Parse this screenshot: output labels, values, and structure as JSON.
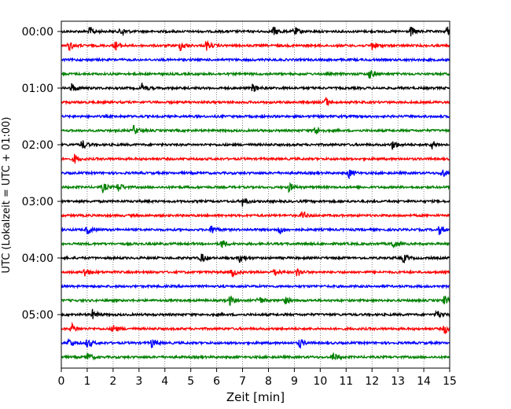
{
  "chart_data": {
    "type": "line",
    "chart_kind": "seismic helicorder (drum plot)",
    "xlabel": "Zeit  [min]",
    "ylabel": "UTC (Lokalzeit = UTC + 01:00)",
    "xlim": [
      0,
      15
    ],
    "x_ticks": [
      "0",
      "1",
      "2",
      "3",
      "4",
      "5",
      "6",
      "7",
      "8",
      "9",
      "10",
      "11",
      "12",
      "13",
      "14",
      "15"
    ],
    "y_ticks": [
      "00:00",
      "01:00",
      "02:00",
      "03:00",
      "04:00",
      "05:00"
    ],
    "grid": "vertical dotted gridlines at each minute",
    "colors_cycle": [
      "#000000",
      "#ff0000",
      "#0000ff",
      "#008000"
    ],
    "line_interval_minutes": 15,
    "traces": [
      {
        "start": "00:00",
        "color": "#000000",
        "events_min": [
          1.1,
          2.3,
          8.2,
          9.0,
          13.5,
          14.9
        ]
      },
      {
        "start": "00:15",
        "color": "#ff0000",
        "events_min": [
          0.3,
          2.1,
          4.6,
          5.6,
          12.0
        ]
      },
      {
        "start": "00:30",
        "color": "#0000ff",
        "events_min": []
      },
      {
        "start": "00:45",
        "color": "#008000",
        "events_min": [
          11.9
        ]
      },
      {
        "start": "01:00",
        "color": "#000000",
        "events_min": [
          0.4,
          3.1,
          7.4
        ]
      },
      {
        "start": "01:15",
        "color": "#ff0000",
        "events_min": [
          10.2
        ]
      },
      {
        "start": "01:30",
        "color": "#0000ff",
        "events_min": []
      },
      {
        "start": "01:45",
        "color": "#008000",
        "events_min": [
          2.8,
          9.8
        ]
      },
      {
        "start": "02:00",
        "color": "#000000",
        "events_min": [
          0.8,
          12.8,
          14.3
        ]
      },
      {
        "start": "02:15",
        "color": "#ff0000",
        "events_min": [
          0.5
        ]
      },
      {
        "start": "02:30",
        "color": "#0000ff",
        "events_min": [
          11.1,
          14.7
        ]
      },
      {
        "start": "02:45",
        "color": "#008000",
        "events_min": [
          1.6,
          2.2,
          8.8
        ]
      },
      {
        "start": "03:00",
        "color": "#000000",
        "events_min": [
          7.0
        ]
      },
      {
        "start": "03:15",
        "color": "#ff0000",
        "events_min": [
          9.3
        ]
      },
      {
        "start": "03:30",
        "color": "#0000ff",
        "events_min": [
          1.0,
          5.8,
          8.4,
          14.6
        ]
      },
      {
        "start": "03:45",
        "color": "#008000",
        "events_min": [
          6.2,
          12.8
        ]
      },
      {
        "start": "04:00",
        "color": "#000000",
        "events_min": [
          5.4,
          6.9,
          13.2
        ]
      },
      {
        "start": "04:15",
        "color": "#ff0000",
        "events_min": [
          0.9,
          6.6,
          8.2,
          9.1
        ]
      },
      {
        "start": "04:30",
        "color": "#0000ff",
        "events_min": []
      },
      {
        "start": "04:45",
        "color": "#008000",
        "events_min": [
          6.5,
          7.6,
          8.6,
          14.8
        ]
      },
      {
        "start": "05:00",
        "color": "#000000",
        "events_min": [
          1.2,
          14.5
        ]
      },
      {
        "start": "05:15",
        "color": "#ff0000",
        "events_min": [
          0.4,
          2.0,
          14.8
        ]
      },
      {
        "start": "05:30",
        "color": "#0000ff",
        "events_min": [
          0.3,
          1.0,
          3.5,
          9.2
        ]
      },
      {
        "start": "05:45",
        "color": "#008000",
        "events_min": [
          1.0,
          10.5
        ]
      }
    ]
  }
}
